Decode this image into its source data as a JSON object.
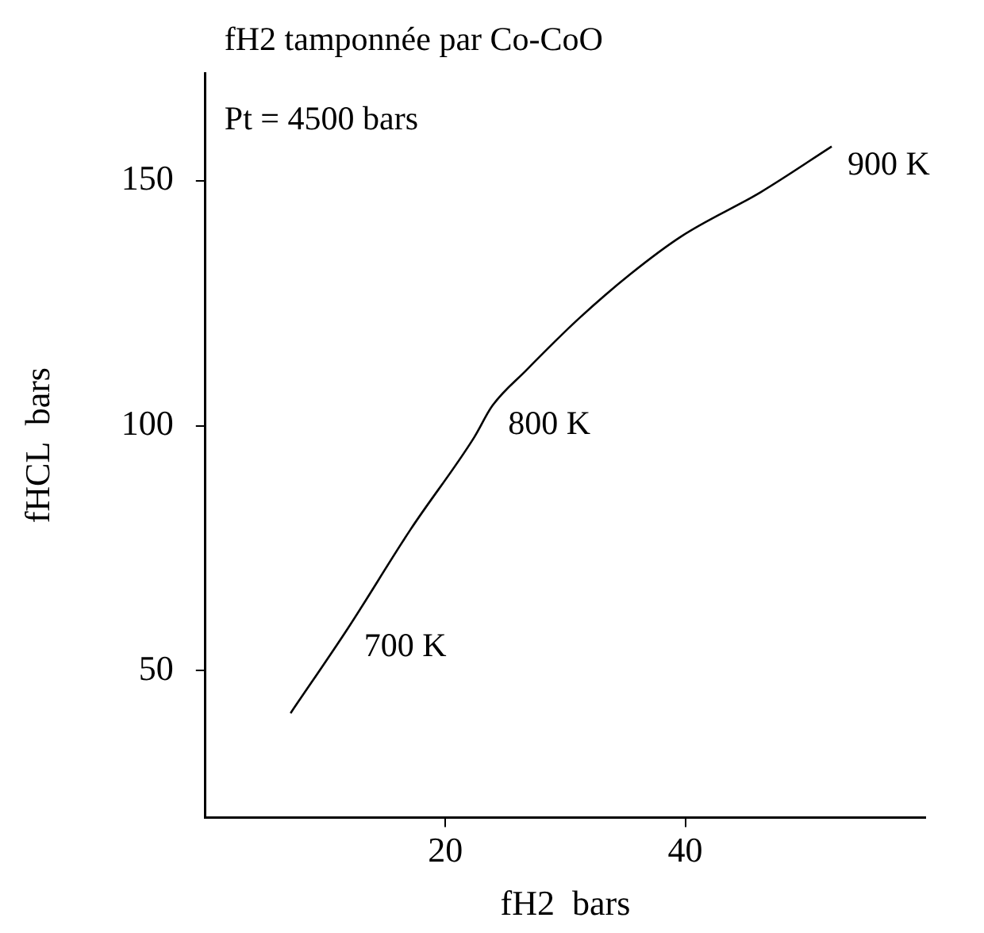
{
  "chart_data": {
    "type": "line",
    "title": "fH2 tamponnée par Co-CoO",
    "subtitle": "Pt = 4500 bars",
    "xlabel": "fH2  bars",
    "ylabel": "fHCL  bars",
    "xlim": [
      0,
      60
    ],
    "xticks": [
      20,
      40
    ],
    "ylim": [
      20,
      172
    ],
    "yticks": [
      50,
      100,
      150
    ],
    "grid": false,
    "legend": false,
    "marker": "none",
    "line_style": "solid",
    "series": [
      {
        "color": "#000000",
        "x": [
          7.1,
          11.9,
          17.1,
          22.4,
          23.9,
          26.7,
          31.1,
          35.4,
          39.7,
          46.3,
          52.2
        ],
        "values": [
          41.3,
          58.7,
          78.8,
          97.6,
          104.0,
          111.2,
          121.8,
          130.9,
          138.7,
          147.7,
          157.0
        ]
      }
    ],
    "annotations": [
      {
        "text": "700 K",
        "x": 11.9,
        "y": 58.7
      },
      {
        "text": "800 K",
        "x": 23.9,
        "y": 104.0
      },
      {
        "text": "900 K",
        "x": 52.2,
        "y": 157.0
      }
    ]
  }
}
